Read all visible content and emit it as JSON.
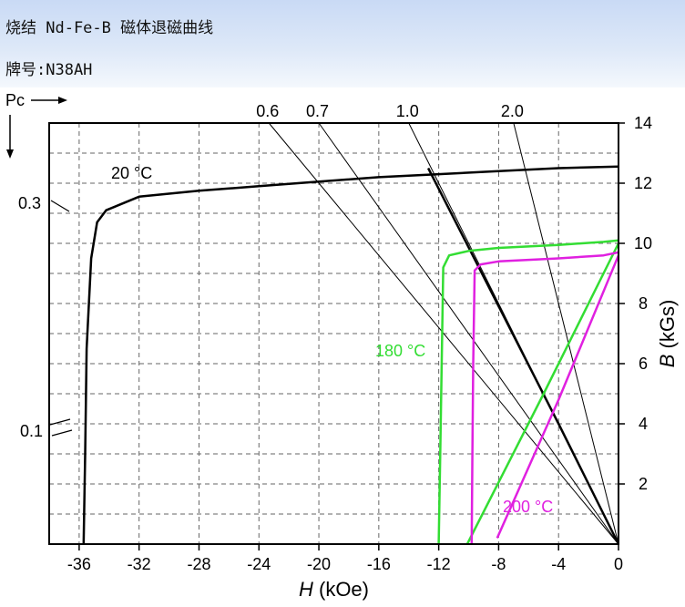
{
  "header": {
    "title": "烧结 Nd-Fe-B 磁体退磁曲线",
    "grade": "牌号:N38AH"
  },
  "chart_data": {
    "type": "line",
    "title": "烧结 Nd-Fe-B 磁体退磁曲线",
    "xlabel": "H (kOe)",
    "ylabel": "B (kGs)",
    "xlim": [
      -38,
      0
    ],
    "ylim": [
      0,
      14
    ],
    "xticks": [
      -36,
      -32,
      -28,
      -24,
      -20,
      -16,
      -12,
      -8,
      -4,
      0
    ],
    "yticks": [
      2,
      4,
      6,
      8,
      10,
      12,
      14
    ],
    "grid": true,
    "pc_axis": {
      "label": "Pc",
      "ticks": [
        "0.3",
        "0.1"
      ],
      "load_lines": [
        {
          "label": "0.6",
          "slope": 0.6
        },
        {
          "label": "0.7",
          "slope": 0.7
        },
        {
          "label": "1.0",
          "slope": 1.0
        },
        {
          "label": "2.0",
          "slope": 2.0
        }
      ]
    },
    "series": [
      {
        "name": "20 °C",
        "color": "#000000",
        "bh": [
          [
            -35.7,
            0
          ],
          [
            -35.6,
            3
          ],
          [
            -35.5,
            6.5
          ],
          [
            -35.2,
            9.5
          ],
          [
            -34.8,
            10.7
          ],
          [
            -34.2,
            11.1
          ],
          [
            -32,
            11.55
          ],
          [
            -28,
            11.75
          ],
          [
            -24,
            11.9
          ],
          [
            -20,
            12.05
          ],
          [
            -16,
            12.2
          ],
          [
            -12,
            12.3
          ],
          [
            -8,
            12.4
          ],
          [
            -4,
            12.5
          ],
          [
            0,
            12.55
          ]
        ],
        "bi": [
          [
            -12.7,
            12.5
          ],
          [
            -4,
            4
          ],
          [
            0,
            0
          ]
        ]
      },
      {
        "name": "180 °C",
        "color": "#33dd33",
        "bh": [
          [
            -12,
            0
          ],
          [
            -11.9,
            3
          ],
          [
            -11.8,
            6
          ],
          [
            -11.7,
            9.2
          ],
          [
            -11.3,
            9.6
          ],
          [
            -10,
            9.75
          ],
          [
            -8,
            9.85
          ],
          [
            -4,
            9.95
          ],
          [
            -1,
            10.05
          ],
          [
            0,
            10.1
          ]
        ],
        "bi": [
          [
            -10.1,
            0
          ],
          [
            -5,
            5
          ],
          [
            0,
            10
          ]
        ]
      },
      {
        "name": "200 °C",
        "color": "#e020e0",
        "bh": [
          [
            -9.8,
            0
          ],
          [
            -9.75,
            3
          ],
          [
            -9.7,
            6
          ],
          [
            -9.6,
            9.1
          ],
          [
            -9.2,
            9.3
          ],
          [
            -8,
            9.4
          ],
          [
            -4,
            9.5
          ],
          [
            -1,
            9.6
          ],
          [
            0,
            9.7
          ]
        ],
        "bi": [
          [
            -8.1,
            0.2
          ],
          [
            -4,
            4.8
          ],
          [
            0,
            9.6
          ]
        ]
      }
    ]
  }
}
